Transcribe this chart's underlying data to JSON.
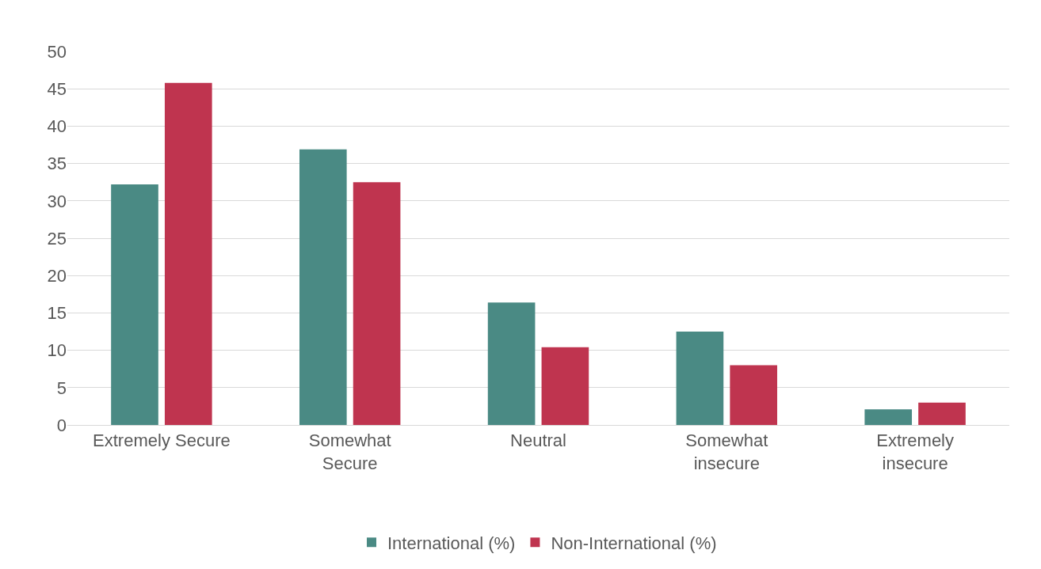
{
  "chart_data": {
    "type": "bar",
    "categories": [
      "Extremely Secure",
      "Somewhat\nSecure",
      "Neutral",
      "Somewhat\ninsecure",
      "Extremely\ninsecure"
    ],
    "series": [
      {
        "name": "International (%)",
        "color": "#4a8a84",
        "values": [
          32.2,
          36.9,
          16.4,
          12.5,
          2.1
        ]
      },
      {
        "name": "Non-International (%)",
        "color": "#bf344f",
        "values": [
          45.8,
          32.5,
          10.4,
          8.0,
          3.0
        ]
      }
    ],
    "ylim": [
      0,
      50
    ],
    "yticks": [
      0,
      5,
      10,
      15,
      20,
      25,
      30,
      35,
      40,
      45,
      50
    ],
    "grid": "y",
    "legend": "bottom"
  }
}
